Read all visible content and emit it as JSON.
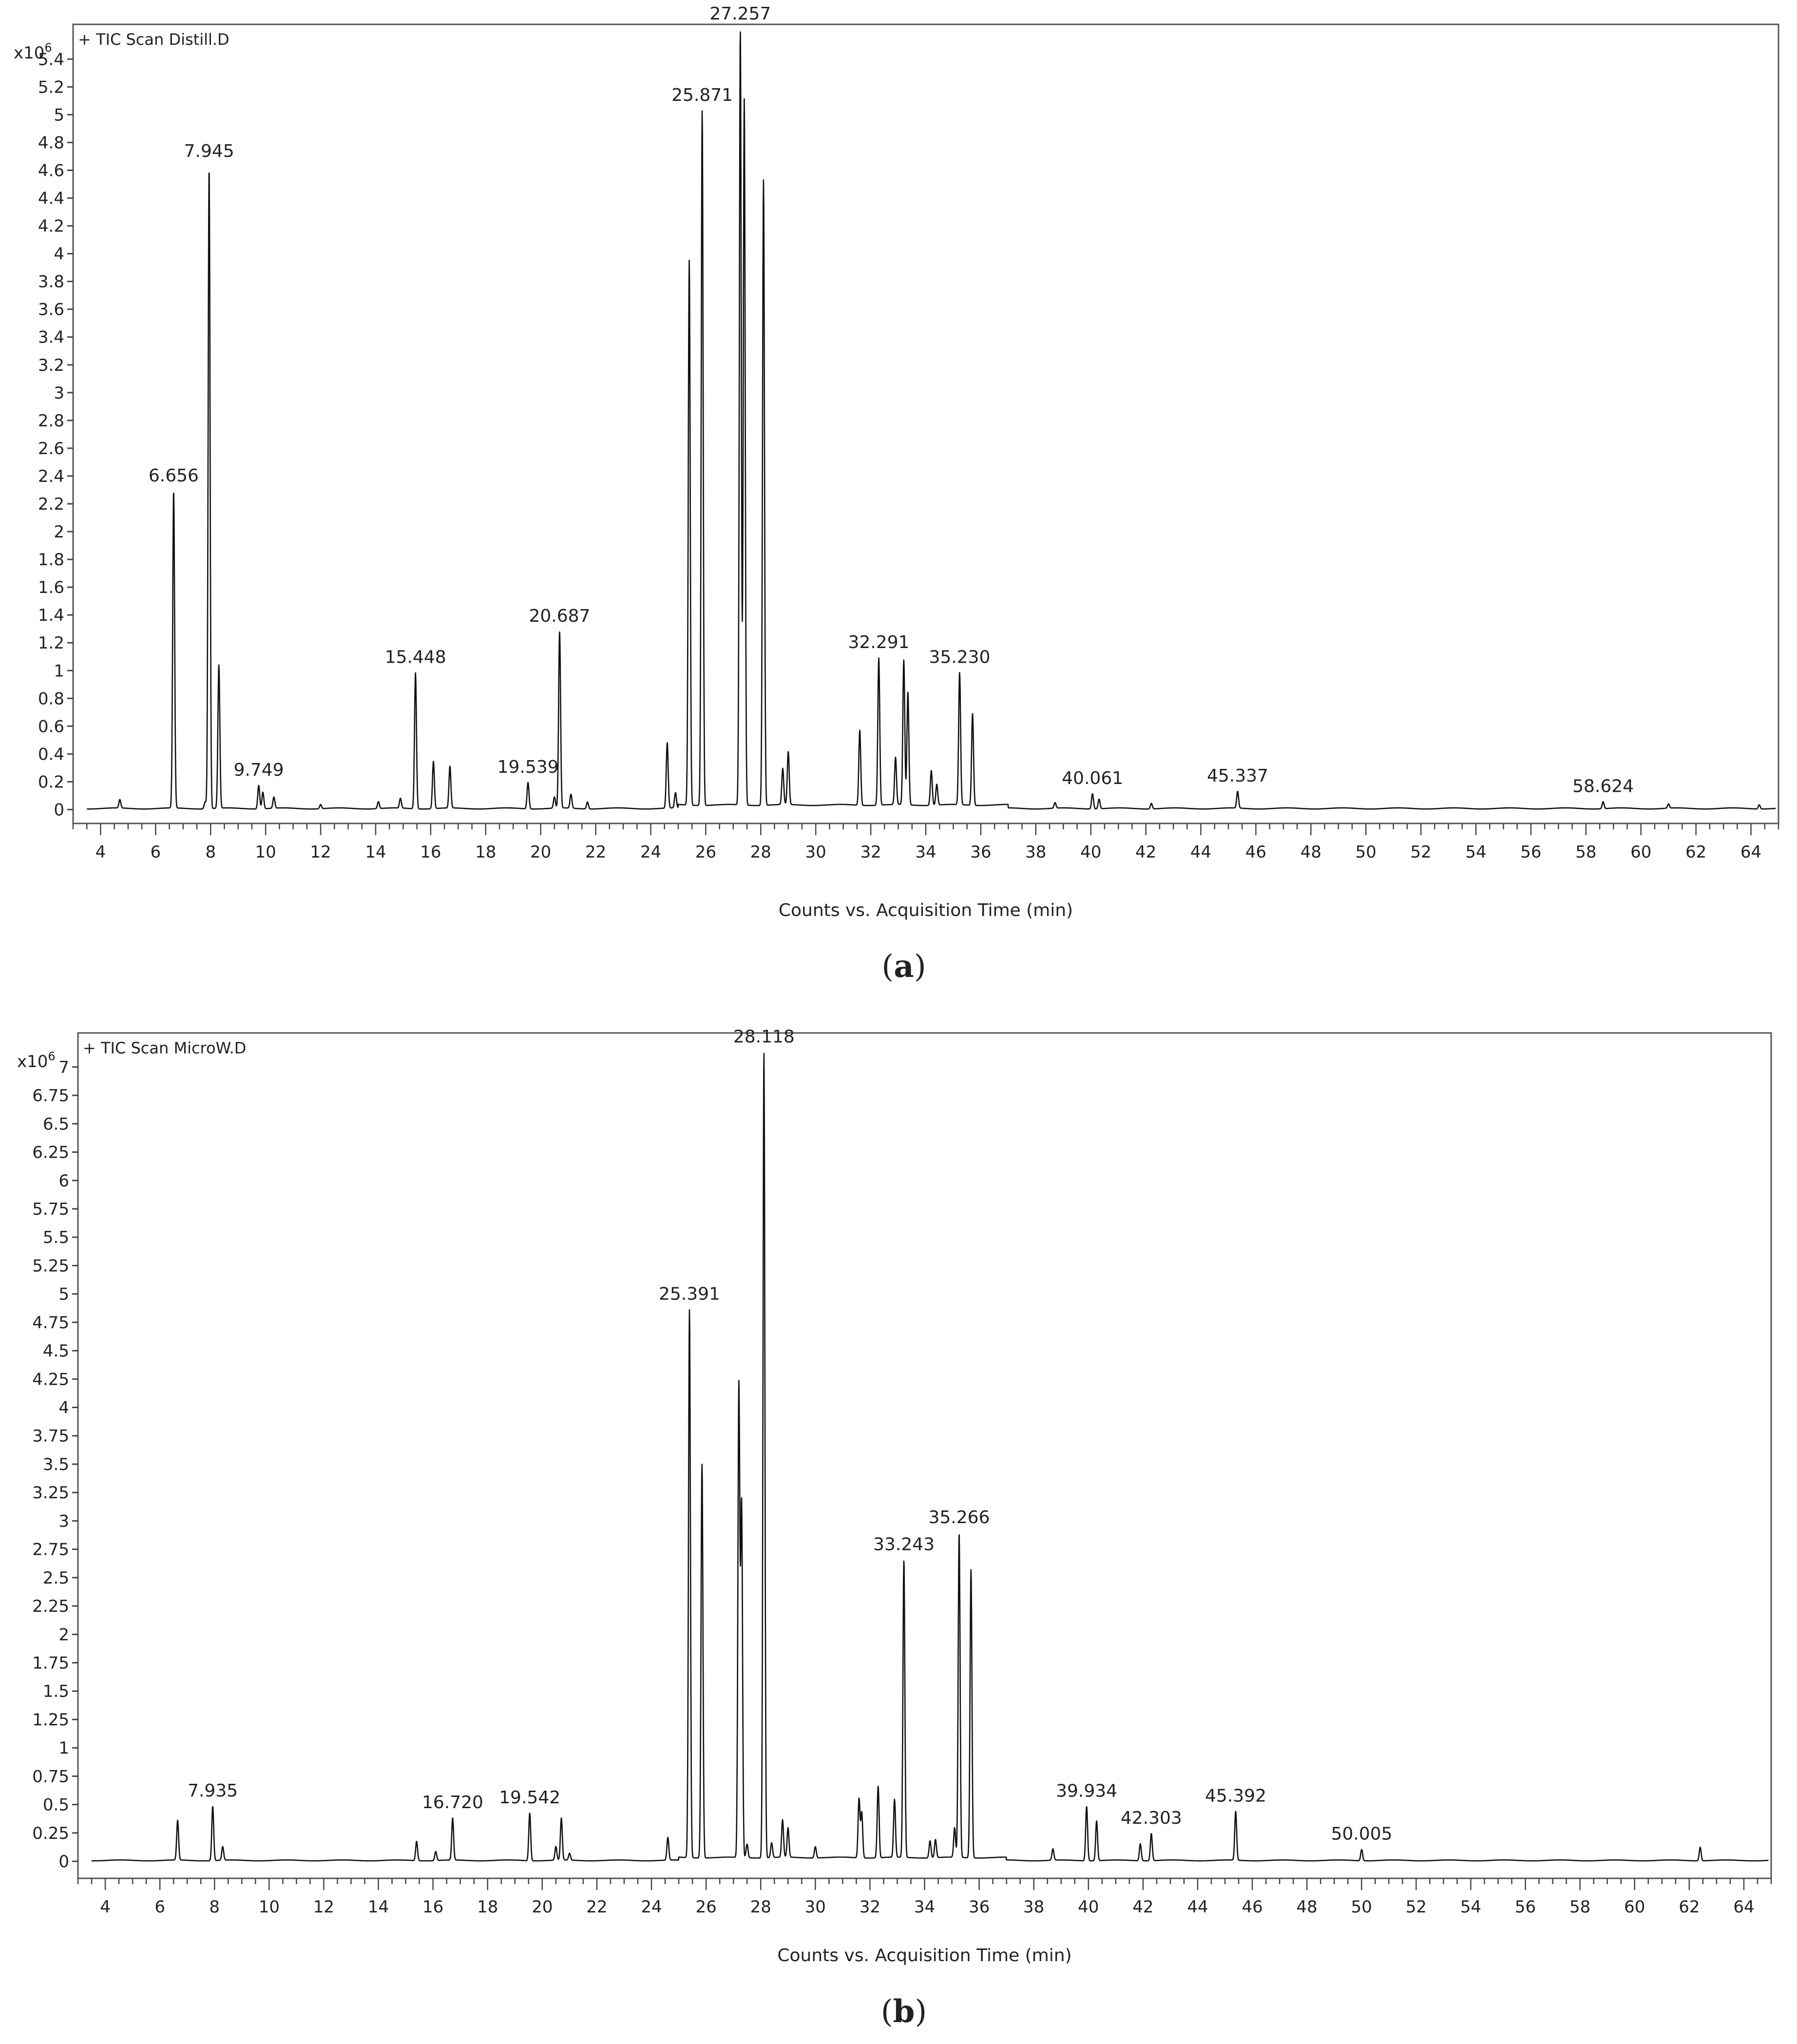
{
  "figure": {
    "panels": [
      {
        "caption_open": "(",
        "caption_letter": "a",
        "caption_close": ")"
      },
      {
        "caption_open": "(",
        "caption_letter": "b",
        "caption_close": ")"
      }
    ]
  },
  "chart_data": [
    {
      "type": "line",
      "title": "+ TIC Scan Distill.D",
      "y_multiplier_base": "x10",
      "y_multiplier_exp": "6",
      "xlabel": "Counts vs. Acquisition Time (min)",
      "xlim": [
        3,
        65
      ],
      "ylim": [
        -0.1,
        5.65
      ],
      "xticks": [
        4,
        6,
        8,
        10,
        12,
        14,
        16,
        18,
        20,
        22,
        24,
        26,
        28,
        30,
        32,
        34,
        36,
        38,
        40,
        42,
        44,
        46,
        48,
        50,
        52,
        54,
        56,
        58,
        60,
        62,
        64
      ],
      "yticks": [
        0,
        0.2,
        0.4,
        0.6,
        0.8,
        1,
        1.2,
        1.4,
        1.6,
        1.8,
        2,
        2.2,
        2.4,
        2.6,
        2.8,
        3,
        3.2,
        3.4,
        3.6,
        3.8,
        4,
        4.2,
        4.4,
        4.6,
        4.8,
        5,
        5.2,
        5.4
      ],
      "peaks": [
        {
          "rt": 4.7,
          "h": 0.06
        },
        {
          "rt": 6.656,
          "h": 2.28,
          "label": "6.656"
        },
        {
          "rt": 7.8,
          "h": 0.05
        },
        {
          "rt": 7.945,
          "h": 4.62,
          "label": "7.945"
        },
        {
          "rt": 8.3,
          "h": 1.03
        },
        {
          "rt": 9.749,
          "h": 0.17,
          "label": "9.749"
        },
        {
          "rt": 9.9,
          "h": 0.12
        },
        {
          "rt": 10.3,
          "h": 0.08
        },
        {
          "rt": 12.0,
          "h": 0.03
        },
        {
          "rt": 14.1,
          "h": 0.05
        },
        {
          "rt": 14.9,
          "h": 0.07
        },
        {
          "rt": 15.448,
          "h": 0.98,
          "label": "15.448"
        },
        {
          "rt": 16.1,
          "h": 0.34
        },
        {
          "rt": 16.7,
          "h": 0.3
        },
        {
          "rt": 19.539,
          "h": 0.19,
          "label": "19.539"
        },
        {
          "rt": 20.5,
          "h": 0.08
        },
        {
          "rt": 20.687,
          "h": 1.27,
          "label": "20.687"
        },
        {
          "rt": 21.1,
          "h": 0.1
        },
        {
          "rt": 21.7,
          "h": 0.05
        },
        {
          "rt": 24.6,
          "h": 0.47
        },
        {
          "rt": 24.9,
          "h": 0.11
        },
        {
          "rt": 25.4,
          "h": 3.92
        },
        {
          "rt": 25.871,
          "h": 5.0,
          "label": "25.871"
        },
        {
          "rt": 27.257,
          "h": 5.58,
          "label": "27.257"
        },
        {
          "rt": 27.4,
          "h": 5.08
        },
        {
          "rt": 28.1,
          "h": 4.5
        },
        {
          "rt": 28.8,
          "h": 0.26
        },
        {
          "rt": 29.0,
          "h": 0.38
        },
        {
          "rt": 31.6,
          "h": 0.54
        },
        {
          "rt": 32.291,
          "h": 1.06,
          "label": "32.291"
        },
        {
          "rt": 32.9,
          "h": 0.34
        },
        {
          "rt": 33.2,
          "h": 1.04
        },
        {
          "rt": 33.35,
          "h": 0.81
        },
        {
          "rt": 34.2,
          "h": 0.25
        },
        {
          "rt": 34.4,
          "h": 0.15
        },
        {
          "rt": 35.23,
          "h": 0.95,
          "label": "35.230"
        },
        {
          "rt": 35.7,
          "h": 0.66
        },
        {
          "rt": 38.7,
          "h": 0.04
        },
        {
          "rt": 40.061,
          "h": 0.11,
          "label": "40.061"
        },
        {
          "rt": 40.3,
          "h": 0.07
        },
        {
          "rt": 42.2,
          "h": 0.04
        },
        {
          "rt": 45.337,
          "h": 0.12,
          "label": "45.337"
        },
        {
          "rt": 58.624,
          "h": 0.05,
          "label": "58.624"
        },
        {
          "rt": 61.0,
          "h": 0.03
        },
        {
          "rt": 64.3,
          "h": 0.03
        }
      ]
    },
    {
      "type": "line",
      "title": "+ TIC Scan MicroW.D",
      "y_multiplier_base": "x10",
      "y_multiplier_exp": "6",
      "xlabel": "Counts vs. Acquisition Time (min)",
      "xlim": [
        3,
        65
      ],
      "ylim": [
        -0.15,
        7.3
      ],
      "xticks": [
        4,
        6,
        8,
        10,
        12,
        14,
        16,
        18,
        20,
        22,
        24,
        26,
        28,
        30,
        32,
        34,
        36,
        38,
        40,
        42,
        44,
        46,
        48,
        50,
        52,
        54,
        56,
        58,
        60,
        62,
        64
      ],
      "yticks": [
        0,
        0.25,
        0.5,
        0.75,
        1,
        1.25,
        1.5,
        1.75,
        2,
        2.25,
        2.5,
        2.75,
        3,
        3.25,
        3.5,
        3.75,
        4,
        4.25,
        4.5,
        4.75,
        5,
        5.25,
        5.5,
        5.75,
        6,
        6.25,
        6.5,
        6.75,
        7
      ],
      "peaks": [
        {
          "rt": 6.65,
          "h": 0.35
        },
        {
          "rt": 7.935,
          "h": 0.48,
          "label": "7.935"
        },
        {
          "rt": 8.3,
          "h": 0.12
        },
        {
          "rt": 15.4,
          "h": 0.17
        },
        {
          "rt": 16.1,
          "h": 0.08
        },
        {
          "rt": 16.72,
          "h": 0.37,
          "label": "16.720"
        },
        {
          "rt": 19.542,
          "h": 0.42,
          "label": "19.542"
        },
        {
          "rt": 20.5,
          "h": 0.12
        },
        {
          "rt": 20.7,
          "h": 0.37
        },
        {
          "rt": 21.0,
          "h": 0.06
        },
        {
          "rt": 24.6,
          "h": 0.2
        },
        {
          "rt": 25.391,
          "h": 4.83,
          "label": "25.391"
        },
        {
          "rt": 25.85,
          "h": 3.47
        },
        {
          "rt": 27.2,
          "h": 4.15
        },
        {
          "rt": 27.3,
          "h": 3.1
        },
        {
          "rt": 27.5,
          "h": 0.12
        },
        {
          "rt": 28.118,
          "h": 7.1,
          "label": "28.118"
        },
        {
          "rt": 28.4,
          "h": 0.13
        },
        {
          "rt": 28.8,
          "h": 0.33
        },
        {
          "rt": 29.0,
          "h": 0.26
        },
        {
          "rt": 30.0,
          "h": 0.1
        },
        {
          "rt": 31.6,
          "h": 0.52
        },
        {
          "rt": 31.7,
          "h": 0.4
        },
        {
          "rt": 32.3,
          "h": 0.63
        },
        {
          "rt": 32.9,
          "h": 0.51
        },
        {
          "rt": 33.243,
          "h": 2.62,
          "label": "33.243"
        },
        {
          "rt": 34.2,
          "h": 0.15
        },
        {
          "rt": 34.4,
          "h": 0.16
        },
        {
          "rt": 35.1,
          "h": 0.26
        },
        {
          "rt": 35.266,
          "h": 2.86,
          "label": "35.266"
        },
        {
          "rt": 35.7,
          "h": 2.54
        },
        {
          "rt": 38.7,
          "h": 0.1
        },
        {
          "rt": 39.934,
          "h": 0.48,
          "label": "39.934"
        },
        {
          "rt": 40.3,
          "h": 0.35
        },
        {
          "rt": 41.9,
          "h": 0.15
        },
        {
          "rt": 42.303,
          "h": 0.24,
          "label": "42.303"
        },
        {
          "rt": 45.392,
          "h": 0.43,
          "label": "45.392"
        },
        {
          "rt": 50.005,
          "h": 0.1,
          "label": "50.005"
        },
        {
          "rt": 62.4,
          "h": 0.12
        }
      ]
    }
  ]
}
